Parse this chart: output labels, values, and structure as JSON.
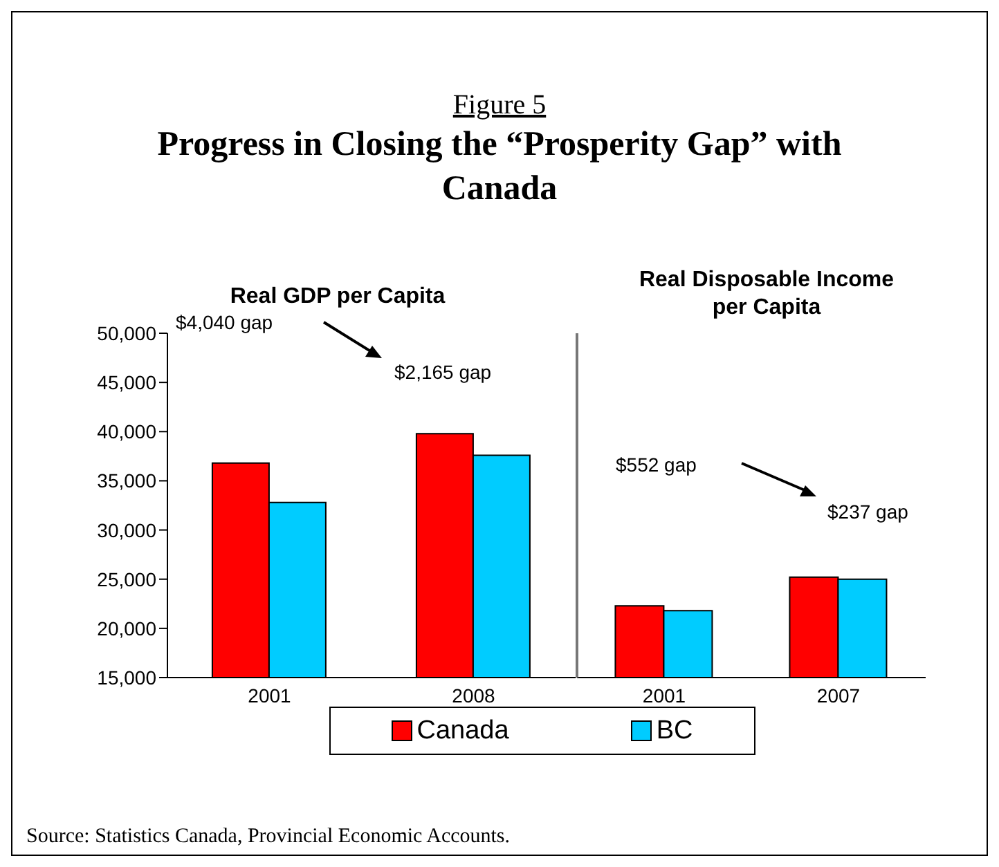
{
  "chart_data": [
    {
      "type": "bar",
      "title": "Progress in Closing the “Prosperity Gap” with Canada",
      "subtitle": "Figure 5",
      "categories": [
        "2001",
        "2008"
      ],
      "series": [
        {
          "name": "Canada",
          "color": "#ff0000",
          "values": [
            36800,
            39800
          ]
        },
        {
          "name": "BC",
          "color": "#00ccff",
          "values": [
            32800,
            37600
          ]
        }
      ],
      "ylim": [
        15000,
        50000
      ],
      "yticks": [
        {
          "value": 15000,
          "label": "15,000"
        },
        {
          "value": 20000,
          "label": "20,000"
        },
        {
          "value": 25000,
          "label": "25,000"
        },
        {
          "value": 30000,
          "label": "30,000"
        },
        {
          "value": 35000,
          "label": "35,000"
        },
        {
          "value": 40000,
          "label": "40,000"
        },
        {
          "value": 45000,
          "label": "45,000"
        },
        {
          "value": 50000,
          "label": "50,000"
        }
      ],
      "grid": false,
      "legend": "bottom",
      "annotations": [
        "Real GDP per Capita",
        "$4,040 gap",
        "$2,165 gap",
        "Source:  Statistics Canada, Provincial Economic Accounts."
      ]
    },
    {
      "type": "bar",
      "categories": [
        "2001",
        "2007"
      ],
      "series": [
        {
          "color": "#ff0000",
          "values": [
            22300,
            25200
          ]
        },
        {
          "color": "#00ccff",
          "values": [
            21800,
            25000
          ]
        }
      ],
      "ylim": [
        15000,
        50000
      ],
      "grid": false,
      "tick_labels": "x",
      "annotations": [
        "Real Disposable Income per Capita",
        "$552 gap",
        "$237 gap"
      ]
    }
  ]
}
